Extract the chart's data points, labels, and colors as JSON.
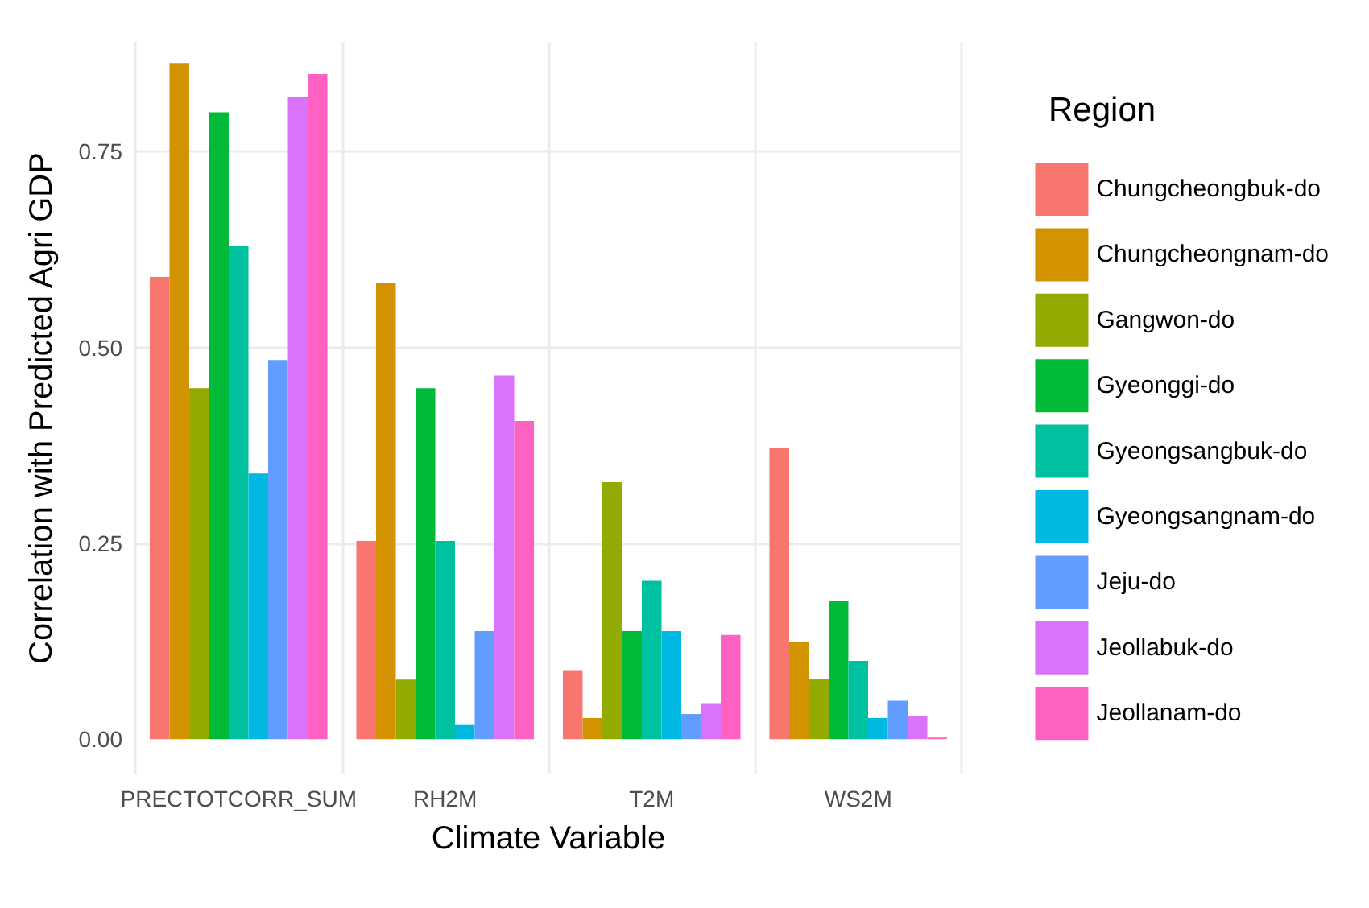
{
  "chart_data": {
    "type": "bar",
    "xlabel": "Climate Variable",
    "ylabel": "Correlation with Predicted Agri GDP",
    "legend_title": "Region",
    "categories": [
      "PRECTOTCORR_SUM",
      "RH2M",
      "T2M",
      "WS2M"
    ],
    "series": [
      {
        "name": "Chungcheongbuk-do",
        "color": "#f8766d",
        "values": [
          0.59,
          0.253,
          0.088,
          0.372
        ]
      },
      {
        "name": "Chungcheongnam-do",
        "color": "#d39200",
        "values": [
          0.863,
          0.582,
          0.027,
          0.124
        ]
      },
      {
        "name": "Gangwon-do",
        "color": "#93aa00",
        "values": [
          0.448,
          0.076,
          0.328,
          0.077
        ]
      },
      {
        "name": "Gyeonggi-do",
        "color": "#00ba38",
        "values": [
          0.8,
          0.448,
          0.138,
          0.177
        ]
      },
      {
        "name": "Gyeongsangbuk-do",
        "color": "#00c19f",
        "values": [
          0.629,
          0.253,
          0.202,
          0.1
        ]
      },
      {
        "name": "Gyeongsangnam-do",
        "color": "#00b9e3",
        "values": [
          0.339,
          0.018,
          0.138,
          0.027
        ]
      },
      {
        "name": "Jeju-do",
        "color": "#619cff",
        "values": [
          0.484,
          0.138,
          0.032,
          0.049
        ]
      },
      {
        "name": "Jeollabuk-do",
        "color": "#db72fb",
        "values": [
          0.819,
          0.464,
          0.046,
          0.029
        ]
      },
      {
        "name": "Jeollanam-do",
        "color": "#ff61c3",
        "values": [
          0.849,
          0.406,
          0.133,
          0.002
        ]
      }
    ],
    "ylim": [
      -0.045,
      0.89
    ],
    "yticks": [
      {
        "value": 0,
        "label": "0.00"
      },
      {
        "value": 0.25,
        "label": "0.25"
      },
      {
        "value": 0.5,
        "label": "0.50"
      },
      {
        "value": 0.75,
        "label": "0.75"
      }
    ],
    "grid": true,
    "legend": "right"
  }
}
